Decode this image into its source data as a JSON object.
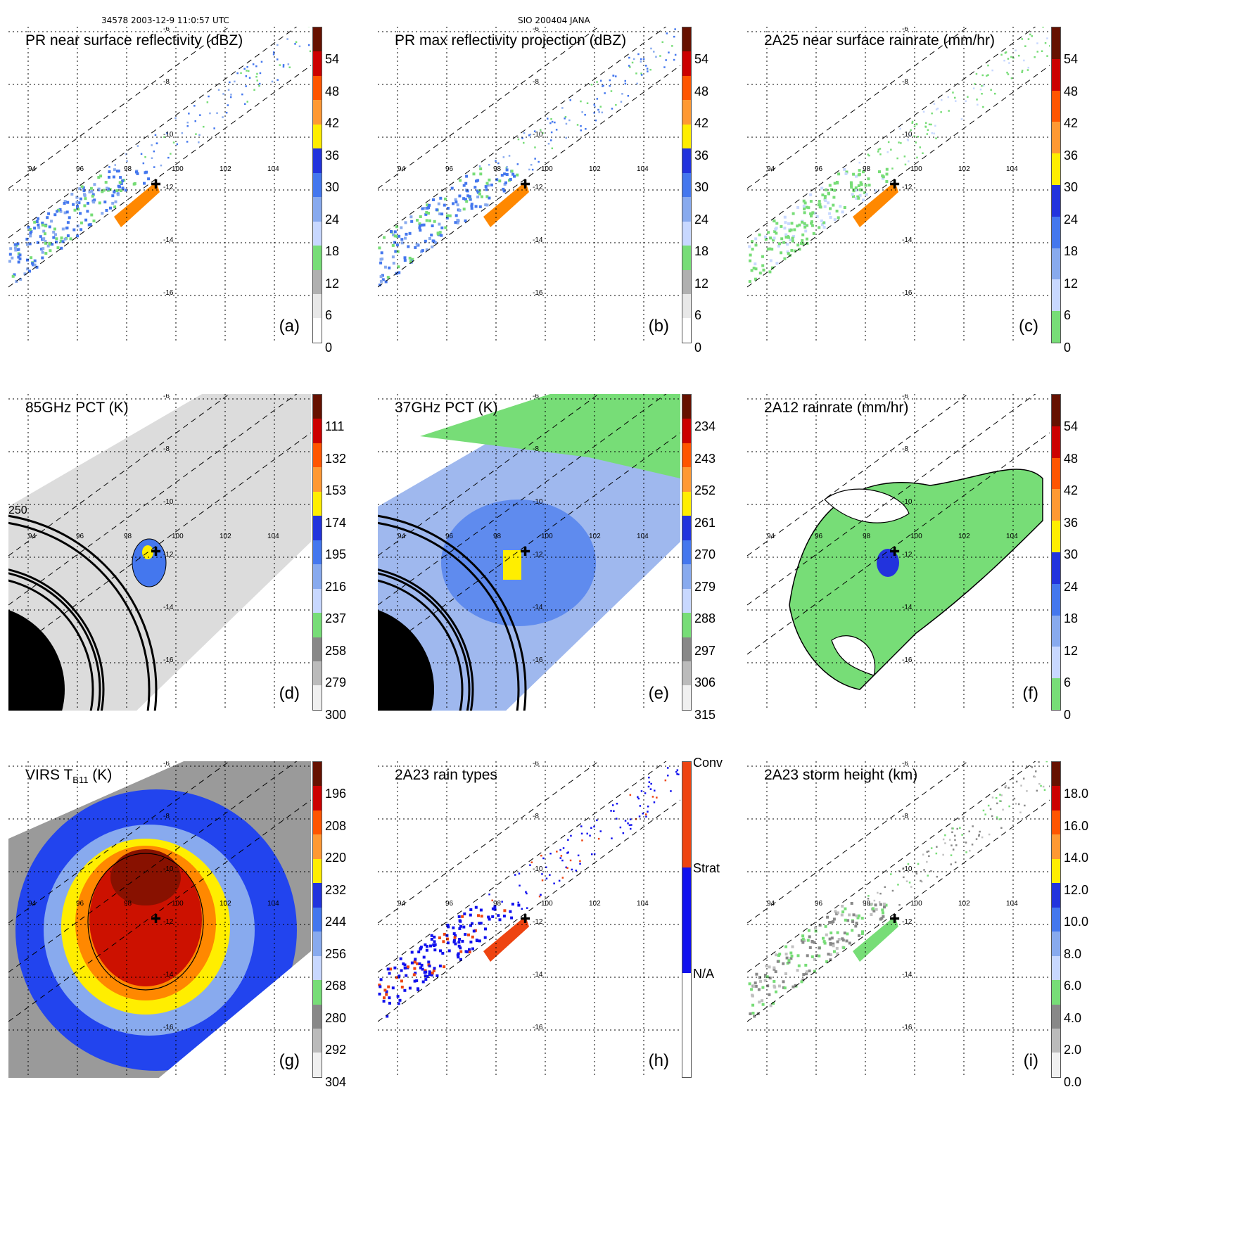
{
  "header": {
    "left": "34578 2003-12-9 11:0:57 UTC",
    "center": "SIO 200404 JANA"
  },
  "colors": {
    "grid": "#000000",
    "green": "#77dd77",
    "lightblue": "#aaccff",
    "blue": "#2244ee",
    "yellow": "#ffee00",
    "orange": "#ff8800",
    "red": "#cc0000",
    "darkred": "#661100"
  },
  "lon_labels": [
    "94",
    "96",
    "98",
    "100",
    "102",
    "104"
  ],
  "lat_labels": [
    "-6",
    "-8",
    "-10",
    "-12",
    "-14",
    "-16"
  ],
  "panels": [
    {
      "id": "a",
      "title": "PR near surface reflectivity (dBZ)",
      "label": "(a)",
      "ticks": [
        "54",
        "48",
        "42",
        "36",
        "30",
        "24",
        "18",
        "12",
        "6",
        "0"
      ],
      "palette": "dbz",
      "field": "pr_swath",
      "contours": false
    },
    {
      "id": "b",
      "title": "PR max reflectivity projection (dBZ)",
      "label": "(b)",
      "ticks": [
        "54",
        "48",
        "42",
        "36",
        "30",
        "24",
        "18",
        "12",
        "6",
        "0"
      ],
      "palette": "dbz",
      "field": "pr_swath",
      "contours": true
    },
    {
      "id": "c",
      "title": "2A25 near surface rainrate (mm/hr)",
      "label": "(c)",
      "ticks": [
        "54",
        "48",
        "42",
        "36",
        "30",
        "24",
        "18",
        "12",
        "6",
        "0"
      ],
      "palette": "rain",
      "field": "pr_swath",
      "contours": true
    },
    {
      "id": "d",
      "title": "85GHz PCT (K)",
      "label": "(d)",
      "ticks": [
        "111",
        "132",
        "153",
        "174",
        "195",
        "216",
        "237",
        "258",
        "279",
        "300"
      ],
      "palette": "pct",
      "field": "tmi_gray",
      "contours": true,
      "contour_label": "250"
    },
    {
      "id": "e",
      "title": "37GHz PCT (K)",
      "label": "(e)",
      "ticks": [
        "234",
        "243",
        "252",
        "261",
        "270",
        "279",
        "288",
        "297",
        "306",
        "315"
      ],
      "palette": "pct",
      "field": "tmi_blue",
      "contours": true
    },
    {
      "id": "f",
      "title": "2A12 rainrate (mm/hr)",
      "label": "(f)",
      "ticks": [
        "54",
        "48",
        "42",
        "36",
        "30",
        "24",
        "18",
        "12",
        "6",
        "0"
      ],
      "palette": "rain",
      "field": "tmi_rain",
      "contours": true
    },
    {
      "id": "g",
      "title_main": "VIRS T",
      "title_sub": "B11",
      "title_end": " (K)",
      "label": "(g)",
      "ticks": [
        "196",
        "208",
        "220",
        "232",
        "244",
        "256",
        "268",
        "280",
        "292",
        "304"
      ],
      "palette": "pct",
      "field": "virs",
      "contours": true
    },
    {
      "id": "h",
      "title": "2A23 rain types",
      "label": "(h)",
      "ticks": [],
      "type_labels": [
        "Conv",
        "Strat",
        "N/A"
      ],
      "palette": "types",
      "field": "pr_swath",
      "contours": false
    },
    {
      "id": "i",
      "title": "2A23 storm height (km)",
      "label": "(i)",
      "ticks": [
        "18.0",
        "16.0",
        "14.0",
        "12.0",
        "10.0",
        "8.0",
        "6.0",
        "4.0",
        "2.0",
        "0.0"
      ],
      "palette": "height",
      "field": "pr_swath",
      "contours": false
    }
  ]
}
